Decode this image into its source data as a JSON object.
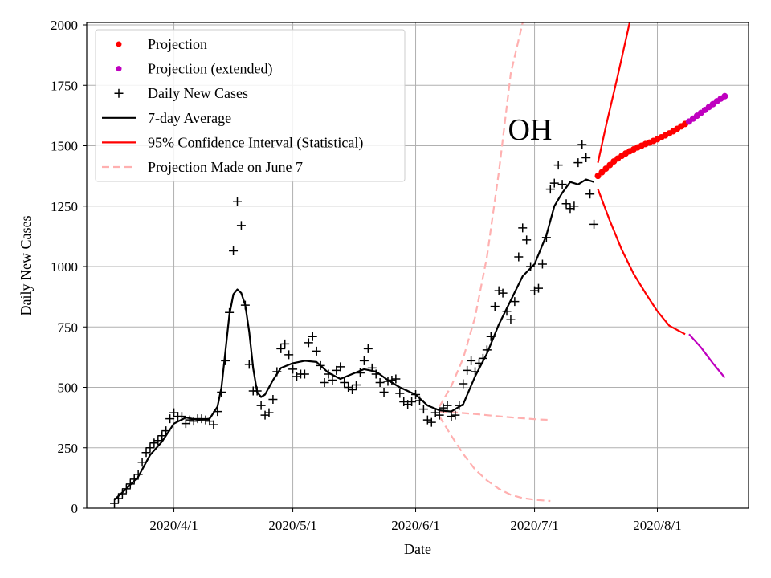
{
  "chart_data": {
    "type": "line",
    "title": "OH",
    "xlabel": "Date",
    "ylabel": "Daily New Cases",
    "grid": true,
    "legend_position": "top-left",
    "x_axis": {
      "type": "date",
      "range": [
        "2020-03-10",
        "2020-08-24"
      ],
      "ticks": [
        "2020-04-01",
        "2020-05-01",
        "2020-06-01",
        "2020-07-01",
        "2020-08-01"
      ],
      "tick_labels": [
        "2020/4/1",
        "2020/5/1",
        "2020/6/1",
        "2020/7/1",
        "2020/8/1"
      ]
    },
    "y_axis": {
      "range": [
        0,
        2010
      ],
      "ticks": [
        0,
        250,
        500,
        750,
        1000,
        1250,
        1500,
        1750,
        2000
      ],
      "tick_labels": [
        "0",
        "250",
        "500",
        "750",
        "1000",
        "1250",
        "1500",
        "1750",
        "2000"
      ]
    },
    "legend": [
      {
        "label": "Projection",
        "marker": "dot",
        "color": "#ff0000"
      },
      {
        "label": "Projection (extended)",
        "marker": "dot",
        "color": "#bf00bf"
      },
      {
        "label": "Daily New Cases",
        "marker": "plus",
        "color": "#000000"
      },
      {
        "label": "7-day Average",
        "marker": "line",
        "color": "#000000"
      },
      {
        "label": "95% Confidence Interval (Statistical)",
        "marker": "line",
        "color": "#ff0000"
      },
      {
        "label": "Projection Made on June 7",
        "marker": "dashed",
        "color": "#ffb0b0"
      }
    ],
    "series": [
      {
        "name": "Daily New Cases",
        "style": "plus",
        "color": "#000000",
        "points": [
          [
            "2020-03-17",
            20
          ],
          [
            "2020-03-18",
            40
          ],
          [
            "2020-03-19",
            60
          ],
          [
            "2020-03-20",
            80
          ],
          [
            "2020-03-21",
            100
          ],
          [
            "2020-03-22",
            120
          ],
          [
            "2020-03-23",
            140
          ],
          [
            "2020-03-24",
            190
          ],
          [
            "2020-03-25",
            230
          ],
          [
            "2020-03-26",
            250
          ],
          [
            "2020-03-27",
            270
          ],
          [
            "2020-03-28",
            280
          ],
          [
            "2020-03-29",
            300
          ],
          [
            "2020-03-30",
            320
          ],
          [
            "2020-03-31",
            370
          ],
          [
            "2020-04-01",
            395
          ],
          [
            "2020-04-02",
            380
          ],
          [
            "2020-04-03",
            380
          ],
          [
            "2020-04-04",
            350
          ],
          [
            "2020-04-05",
            365
          ],
          [
            "2020-04-06",
            360
          ],
          [
            "2020-04-07",
            370
          ],
          [
            "2020-04-08",
            370
          ],
          [
            "2020-04-09",
            365
          ],
          [
            "2020-04-10",
            360
          ],
          [
            "2020-04-11",
            345
          ],
          [
            "2020-04-12",
            400
          ],
          [
            "2020-04-13",
            480
          ],
          [
            "2020-04-14",
            610
          ],
          [
            "2020-04-15",
            810
          ],
          [
            "2020-04-16",
            1065
          ],
          [
            "2020-04-17",
            1270
          ],
          [
            "2020-04-18",
            1170
          ],
          [
            "2020-04-19",
            840
          ],
          [
            "2020-04-20",
            595
          ],
          [
            "2020-04-21",
            485
          ],
          [
            "2020-04-22",
            485
          ],
          [
            "2020-04-23",
            425
          ],
          [
            "2020-04-24",
            385
          ],
          [
            "2020-04-25",
            395
          ],
          [
            "2020-04-26",
            450
          ],
          [
            "2020-04-27",
            565
          ],
          [
            "2020-04-28",
            660
          ],
          [
            "2020-04-29",
            680
          ],
          [
            "2020-04-30",
            635
          ],
          [
            "2020-05-01",
            575
          ],
          [
            "2020-05-02",
            545
          ],
          [
            "2020-05-03",
            555
          ],
          [
            "2020-05-04",
            555
          ],
          [
            "2020-05-05",
            685
          ],
          [
            "2020-05-06",
            710
          ],
          [
            "2020-05-07",
            650
          ],
          [
            "2020-05-08",
            590
          ],
          [
            "2020-05-09",
            520
          ],
          [
            "2020-05-10",
            555
          ],
          [
            "2020-05-11",
            530
          ],
          [
            "2020-05-12",
            570
          ],
          [
            "2020-05-13",
            585
          ],
          [
            "2020-05-14",
            520
          ],
          [
            "2020-05-15",
            500
          ],
          [
            "2020-05-16",
            490
          ],
          [
            "2020-05-17",
            510
          ],
          [
            "2020-05-18",
            560
          ],
          [
            "2020-05-19",
            610
          ],
          [
            "2020-05-20",
            660
          ],
          [
            "2020-05-21",
            580
          ],
          [
            "2020-05-22",
            555
          ],
          [
            "2020-05-23",
            520
          ],
          [
            "2020-05-24",
            480
          ],
          [
            "2020-05-25",
            525
          ],
          [
            "2020-05-26",
            530
          ],
          [
            "2020-05-27",
            535
          ],
          [
            "2020-05-28",
            475
          ],
          [
            "2020-05-29",
            440
          ],
          [
            "2020-05-30",
            430
          ],
          [
            "2020-05-31",
            440
          ],
          [
            "2020-06-01",
            470
          ],
          [
            "2020-06-02",
            445
          ],
          [
            "2020-06-03",
            410
          ],
          [
            "2020-06-04",
            365
          ],
          [
            "2020-06-05",
            355
          ],
          [
            "2020-06-06",
            395
          ],
          [
            "2020-06-07",
            385
          ],
          [
            "2020-06-08",
            415
          ],
          [
            "2020-06-09",
            425
          ],
          [
            "2020-06-10",
            380
          ],
          [
            "2020-06-11",
            385
          ],
          [
            "2020-06-12",
            425
          ],
          [
            "2020-06-13",
            515
          ],
          [
            "2020-06-14",
            570
          ],
          [
            "2020-06-15",
            610
          ],
          [
            "2020-06-16",
            565
          ],
          [
            "2020-06-17",
            600
          ],
          [
            "2020-06-18",
            620
          ],
          [
            "2020-06-19",
            655
          ],
          [
            "2020-06-20",
            710
          ],
          [
            "2020-06-21",
            835
          ],
          [
            "2020-06-22",
            900
          ],
          [
            "2020-06-23",
            890
          ],
          [
            "2020-06-24",
            815
          ],
          [
            "2020-06-25",
            780
          ],
          [
            "2020-06-26",
            855
          ],
          [
            "2020-06-27",
            1040
          ],
          [
            "2020-06-28",
            1160
          ],
          [
            "2020-06-29",
            1110
          ],
          [
            "2020-06-30",
            1000
          ],
          [
            "2020-07-01",
            900
          ],
          [
            "2020-07-02",
            910
          ],
          [
            "2020-07-03",
            1010
          ],
          [
            "2020-07-04",
            1120
          ],
          [
            "2020-07-05",
            1320
          ],
          [
            "2020-07-06",
            1345
          ],
          [
            "2020-07-07",
            1420
          ],
          [
            "2020-07-08",
            1340
          ],
          [
            "2020-07-09",
            1260
          ],
          [
            "2020-07-10",
            1240
          ],
          [
            "2020-07-11",
            1250
          ],
          [
            "2020-07-12",
            1430
          ],
          [
            "2020-07-13",
            1505
          ],
          [
            "2020-07-14",
            1450
          ],
          [
            "2020-07-15",
            1300
          ],
          [
            "2020-07-16",
            1175
          ]
        ]
      },
      {
        "name": "7-day Average",
        "style": "line",
        "color": "#000000",
        "points": [
          [
            "2020-03-17",
            35
          ],
          [
            "2020-03-20",
            80
          ],
          [
            "2020-03-23",
            130
          ],
          [
            "2020-03-26",
            220
          ],
          [
            "2020-03-29",
            275
          ],
          [
            "2020-04-01",
            350
          ],
          [
            "2020-04-04",
            375
          ],
          [
            "2020-04-07",
            365
          ],
          [
            "2020-04-10",
            370
          ],
          [
            "2020-04-12",
            420
          ],
          [
            "2020-04-13",
            500
          ],
          [
            "2020-04-14",
            650
          ],
          [
            "2020-04-15",
            800
          ],
          [
            "2020-04-16",
            885
          ],
          [
            "2020-04-17",
            905
          ],
          [
            "2020-04-18",
            890
          ],
          [
            "2020-04-19",
            840
          ],
          [
            "2020-04-20",
            730
          ],
          [
            "2020-04-21",
            580
          ],
          [
            "2020-04-22",
            480
          ],
          [
            "2020-04-23",
            460
          ],
          [
            "2020-04-24",
            470
          ],
          [
            "2020-04-26",
            530
          ],
          [
            "2020-04-28",
            580
          ],
          [
            "2020-05-01",
            600
          ],
          [
            "2020-05-04",
            610
          ],
          [
            "2020-05-07",
            605
          ],
          [
            "2020-05-10",
            560
          ],
          [
            "2020-05-13",
            535
          ],
          [
            "2020-05-16",
            555
          ],
          [
            "2020-05-19",
            575
          ],
          [
            "2020-05-22",
            565
          ],
          [
            "2020-05-25",
            530
          ],
          [
            "2020-05-28",
            500
          ],
          [
            "2020-06-01",
            470
          ],
          [
            "2020-06-04",
            425
          ],
          [
            "2020-06-07",
            405
          ],
          [
            "2020-06-10",
            400
          ],
          [
            "2020-06-13",
            430
          ],
          [
            "2020-06-16",
            545
          ],
          [
            "2020-06-19",
            640
          ],
          [
            "2020-06-22",
            760
          ],
          [
            "2020-06-25",
            860
          ],
          [
            "2020-06-28",
            960
          ],
          [
            "2020-07-01",
            1010
          ],
          [
            "2020-07-04",
            1130
          ],
          [
            "2020-07-06",
            1250
          ],
          [
            "2020-07-08",
            1305
          ],
          [
            "2020-07-10",
            1350
          ],
          [
            "2020-07-12",
            1340
          ],
          [
            "2020-07-14",
            1360
          ],
          [
            "2020-07-16",
            1350
          ]
        ]
      },
      {
        "name": "Projection",
        "style": "dots",
        "color": "#ff0000",
        "points": [
          [
            "2020-07-17",
            1375
          ],
          [
            "2020-07-18",
            1390
          ],
          [
            "2020-07-19",
            1405
          ],
          [
            "2020-07-20",
            1420
          ],
          [
            "2020-07-21",
            1435
          ],
          [
            "2020-07-22",
            1447
          ],
          [
            "2020-07-23",
            1458
          ],
          [
            "2020-07-24",
            1468
          ],
          [
            "2020-07-25",
            1477
          ],
          [
            "2020-07-26",
            1485
          ],
          [
            "2020-07-27",
            1493
          ],
          [
            "2020-07-28",
            1500
          ],
          [
            "2020-07-29",
            1507
          ],
          [
            "2020-07-30",
            1513
          ],
          [
            "2020-07-31",
            1520
          ],
          [
            "2020-08-01",
            1527
          ],
          [
            "2020-08-02",
            1535
          ],
          [
            "2020-08-03",
            1543
          ],
          [
            "2020-08-04",
            1551
          ],
          [
            "2020-08-05",
            1560
          ],
          [
            "2020-08-06",
            1570
          ],
          [
            "2020-08-07",
            1580
          ],
          [
            "2020-08-08",
            1590
          ]
        ]
      },
      {
        "name": "Projection (extended)",
        "style": "dots",
        "color": "#bf00bf",
        "points": [
          [
            "2020-08-09",
            1600
          ],
          [
            "2020-08-10",
            1612
          ],
          [
            "2020-08-11",
            1624
          ],
          [
            "2020-08-12",
            1636
          ],
          [
            "2020-08-13",
            1648
          ],
          [
            "2020-08-14",
            1660
          ],
          [
            "2020-08-15",
            1672
          ],
          [
            "2020-08-16",
            1684
          ],
          [
            "2020-08-17",
            1695
          ],
          [
            "2020-08-18",
            1705
          ]
        ]
      },
      {
        "name": "95% Confidence Interval (Statistical)",
        "style": "line",
        "color": "#ff0000",
        "segments": [
          [
            [
              "2020-07-17",
              1430
            ],
            [
              "2020-07-19",
              1580
            ],
            [
              "2020-07-22",
              1790
            ],
            [
              "2020-07-25",
              2010
            ]
          ],
          [
            [
              "2020-07-17",
              1320
            ],
            [
              "2020-07-20",
              1190
            ],
            [
              "2020-07-23",
              1070
            ],
            [
              "2020-07-26",
              970
            ],
            [
              "2020-07-29",
              890
            ],
            [
              "2020-08-01",
              815
            ],
            [
              "2020-08-04",
              755
            ],
            [
              "2020-08-08",
              720
            ]
          ]
        ]
      },
      {
        "style": "line",
        "color": "#bf00bf",
        "segments": [
          [
            [
              "2020-08-09",
              720
            ],
            [
              "2020-08-12",
              665
            ],
            [
              "2020-08-15",
              600
            ],
            [
              "2020-08-18",
              540
            ]
          ]
        ]
      },
      {
        "name": "Projection Made on June 7",
        "style": "dashed",
        "color": "#ffb0b0",
        "segments": [
          [
            [
              "2020-06-07",
              420
            ],
            [
              "2020-06-10",
              505
            ],
            [
              "2020-06-13",
              620
            ],
            [
              "2020-06-16",
              790
            ],
            [
              "2020-06-19",
              1040
            ],
            [
              "2020-06-22",
              1390
            ],
            [
              "2020-06-25",
              1800
            ],
            [
              "2020-06-28",
              2010
            ]
          ],
          [
            [
              "2020-06-07",
              400
            ],
            [
              "2020-06-12",
              395
            ],
            [
              "2020-06-17",
              388
            ],
            [
              "2020-06-22",
              380
            ],
            [
              "2020-06-27",
              373
            ],
            [
              "2020-07-02",
              367
            ],
            [
              "2020-07-05",
              365
            ]
          ],
          [
            [
              "2020-06-07",
              380
            ],
            [
              "2020-06-10",
              300
            ],
            [
              "2020-06-13",
              225
            ],
            [
              "2020-06-16",
              160
            ],
            [
              "2020-06-19",
              115
            ],
            [
              "2020-06-22",
              80
            ],
            [
              "2020-06-25",
              55
            ],
            [
              "2020-06-28",
              42
            ],
            [
              "2020-07-01",
              35
            ],
            [
              "2020-07-05",
              30
            ]
          ]
        ]
      }
    ]
  }
}
